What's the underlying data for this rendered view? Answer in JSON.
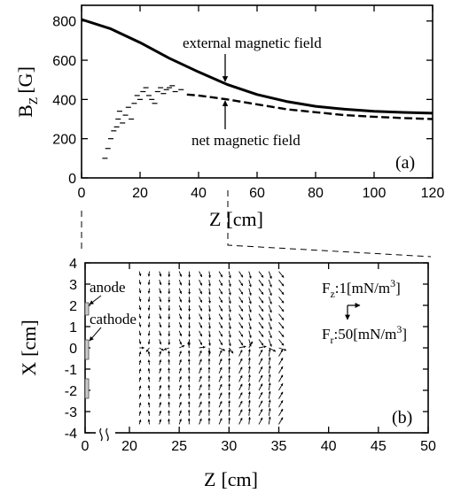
{
  "chart_data": [
    {
      "panel_label": "(a)",
      "type": "line",
      "ylabel_main": "B",
      "ylabel_sub": "Z",
      "ylabel_unit": "[G]",
      "xlabel_main": "Z",
      "xlabel_unit": "[cm]",
      "xlim": [
        0,
        120
      ],
      "ylim": [
        0,
        880
      ],
      "xticks": [
        "0",
        "20",
        "40",
        "60",
        "80",
        "100",
        "120"
      ],
      "yticks": [
        "0",
        "200",
        "400",
        "600",
        "800"
      ],
      "xtick_values": [
        0,
        20,
        40,
        60,
        80,
        100,
        120
      ],
      "ytick_values": [
        0,
        200,
        400,
        600,
        800
      ],
      "annotations": {
        "external": "external magnetic field",
        "net": "net magnetic field"
      },
      "series": [
        {
          "style": "solid",
          "x": [
            0,
            10,
            20,
            30,
            40,
            50,
            60,
            70,
            80,
            90,
            100,
            110,
            120
          ],
          "y": [
            808,
            760,
            690,
            610,
            540,
            475,
            425,
            390,
            365,
            350,
            340,
            334,
            330
          ]
        },
        {
          "style": "dashed",
          "x": [
            36,
            40,
            50,
            60,
            70,
            80,
            90,
            100,
            110,
            120
          ],
          "y": [
            425,
            420,
            400,
            375,
            350,
            335,
            320,
            312,
            305,
            300
          ]
        },
        {
          "style": "scatter",
          "x": [
            8,
            9,
            10,
            11,
            12,
            12.5,
            13,
            14,
            15,
            16,
            17,
            18,
            19,
            20,
            21,
            22,
            23,
            24,
            25,
            26,
            27,
            28,
            29,
            30,
            31,
            32,
            34
          ],
          "y": [
            100,
            150,
            200,
            240,
            260,
            300,
            340,
            280,
            320,
            360,
            300,
            380,
            420,
            400,
            440,
            460,
            420,
            400,
            380,
            440,
            460,
            430,
            450,
            460,
            470,
            440,
            450
          ]
        }
      ]
    },
    {
      "panel_label": "(b)",
      "type": "scatter",
      "ylabel_main": "X",
      "ylabel_unit": "[cm]",
      "xlabel_main": "Z",
      "xlabel_unit": "[cm]",
      "xlim": [
        0,
        50
      ],
      "ylim": [
        -4,
        4
      ],
      "xticks": [
        "0",
        "20",
        "25",
        "30",
        "35",
        "40",
        "45",
        "50"
      ],
      "yticks": [
        "4",
        "3",
        "2",
        "1",
        "0",
        "-1",
        "-2",
        "-3",
        "-4"
      ],
      "ytick_values": [
        4,
        3,
        2,
        1,
        0,
        -1,
        -2,
        -3,
        -4
      ],
      "electrode_labels": {
        "anode": "anode",
        "cathode": "cathode"
      },
      "legend": {
        "fz_main": "F",
        "fz_sub": "z",
        "fz_val": ":1[mN/m",
        "fz_sup": "3",
        "fz_end": "]",
        "fr_main": "F",
        "fr_sub": "r",
        "fr_val": ":50[mN/m",
        "fr_sup": "3",
        "fr_end": "]"
      },
      "field_grid": {
        "z": [
          21,
          22,
          23,
          24,
          25,
          26,
          27,
          28,
          29,
          30,
          31,
          32,
          33,
          34,
          35
        ],
        "x": [
          -3.6,
          -3.2,
          -2.8,
          -2.4,
          -2.0,
          -1.6,
          -1.2,
          -0.8,
          -0.4,
          0,
          0.4,
          0.8,
          1.2,
          1.6,
          2.0,
          2.4,
          2.8,
          3.2,
          3.6
        ]
      }
    }
  ]
}
